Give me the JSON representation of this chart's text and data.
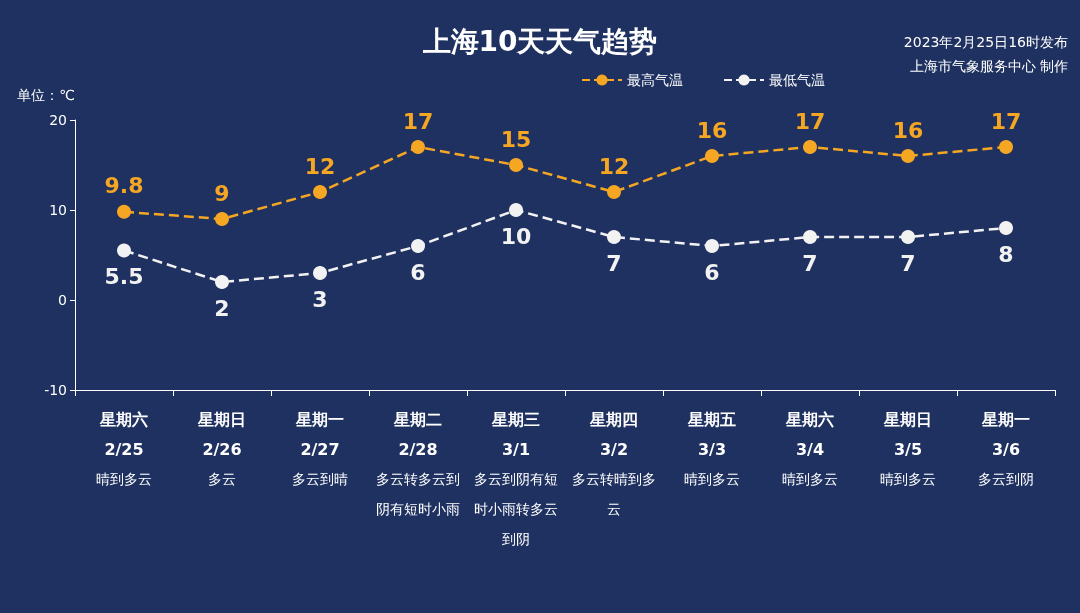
{
  "chart_data": {
    "type": "line",
    "title": "上海10天天气趋势",
    "ylabel": "单位：℃",
    "annotations": [
      "2023年2月25日16时发布",
      "上海市气象服务中心 制作"
    ],
    "categories": [
      "星期六\n2/25\n晴到多云",
      "星期日\n2/26\n多云",
      "星期一\n2/27\n多云到晴",
      "星期二\n2/28\n多云转多云到阴有短时小雨",
      "星期三\n3/1\n多云到阴有短时小雨转多云到阴",
      "星期四\n3/2\n多云转晴到多云",
      "星期五\n3/3\n晴到多云",
      "星期六\n3/4\n晴到多云",
      "星期日\n3/5\n晴到多云",
      "星期一\n3/6\n多云到阴"
    ],
    "series": [
      {
        "name": "最高气温",
        "color": "#f5a623",
        "values": [
          9.8,
          9,
          12,
          17,
          15,
          12,
          16,
          17,
          16,
          17
        ]
      },
      {
        "name": "最低气温",
        "color": "#f2f2f2",
        "values": [
          5.5,
          2,
          3,
          6,
          10,
          7,
          6,
          7,
          7,
          8
        ]
      }
    ],
    "ylim": [
      -10,
      20
    ],
    "yticks": [
      -10,
      0,
      10,
      20
    ],
    "grid": false,
    "legend": "top right",
    "marker": "circle",
    "line_style": "dashed",
    "data_labels": true
  }
}
